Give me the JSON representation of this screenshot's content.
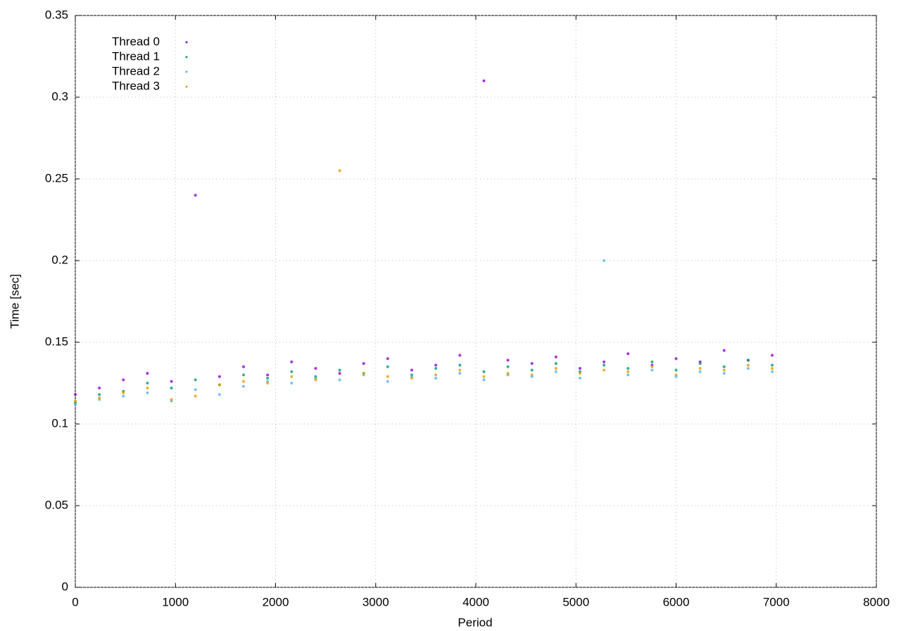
{
  "chart_data": {
    "type": "scatter",
    "x_label": "Period",
    "y_label": "Time [sec]",
    "xlim": [
      0,
      8000
    ],
    "xticks": [
      0,
      1000,
      2000,
      3000,
      4000,
      5000,
      6000,
      7000,
      8000
    ],
    "ylim": [
      0,
      0.35
    ],
    "yticks": [
      0,
      0.05,
      0.1,
      0.15,
      0.2,
      0.25,
      0.3,
      0.35
    ],
    "grid": true,
    "legend": "top-left",
    "x": [
      0,
      240,
      480,
      720,
      960,
      1200,
      1440,
      1680,
      1920,
      2160,
      2400,
      2640,
      2880,
      3120,
      3360,
      3600,
      3840,
      4080,
      4320,
      4560,
      4800,
      5040,
      5280,
      5520,
      5760,
      6000,
      6240,
      6480,
      6720,
      6960
    ],
    "series": [
      {
        "name": "Thread 0",
        "color": "#9400d3",
        "values": [
          0.118,
          0.122,
          0.127,
          0.131,
          0.126,
          0.24,
          0.129,
          0.135,
          0.13,
          0.138,
          0.134,
          0.131,
          0.137,
          0.14,
          0.133,
          0.136,
          0.142,
          0.31,
          0.139,
          0.137,
          0.141,
          0.134,
          0.138,
          0.143,
          0.136,
          0.14,
          0.138,
          0.145,
          0.139,
          0.142
        ]
      },
      {
        "name": "Thread 1",
        "color": "#009e73",
        "values": [
          0.113,
          0.118,
          0.12,
          0.125,
          0.122,
          0.127,
          0.124,
          0.13,
          0.128,
          0.132,
          0.129,
          0.133,
          0.131,
          0.135,
          0.13,
          0.134,
          0.136,
          0.132,
          0.135,
          0.133,
          0.137,
          0.132,
          0.136,
          0.134,
          0.138,
          0.133,
          0.137,
          0.135,
          0.139,
          0.136
        ]
      },
      {
        "name": "Thread 2",
        "color": "#56b4e9",
        "values": [
          0.112,
          0.115,
          0.117,
          0.119,
          0.114,
          0.121,
          0.118,
          0.123,
          0.126,
          0.125,
          0.128,
          0.127,
          0.13,
          0.126,
          0.129,
          0.128,
          0.131,
          0.127,
          0.13,
          0.129,
          0.132,
          0.128,
          0.2,
          0.13,
          0.133,
          0.129,
          0.132,
          0.131,
          0.134,
          0.132
        ]
      },
      {
        "name": "Thread 3",
        "color": "#e69f00",
        "values": [
          0.114,
          0.116,
          0.119,
          0.122,
          0.115,
          0.117,
          0.124,
          0.126,
          0.125,
          0.129,
          0.127,
          0.255,
          0.131,
          0.129,
          0.128,
          0.13,
          0.133,
          0.129,
          0.131,
          0.13,
          0.134,
          0.131,
          0.133,
          0.132,
          0.135,
          0.13,
          0.134,
          0.133,
          0.136,
          0.134
        ]
      }
    ]
  }
}
